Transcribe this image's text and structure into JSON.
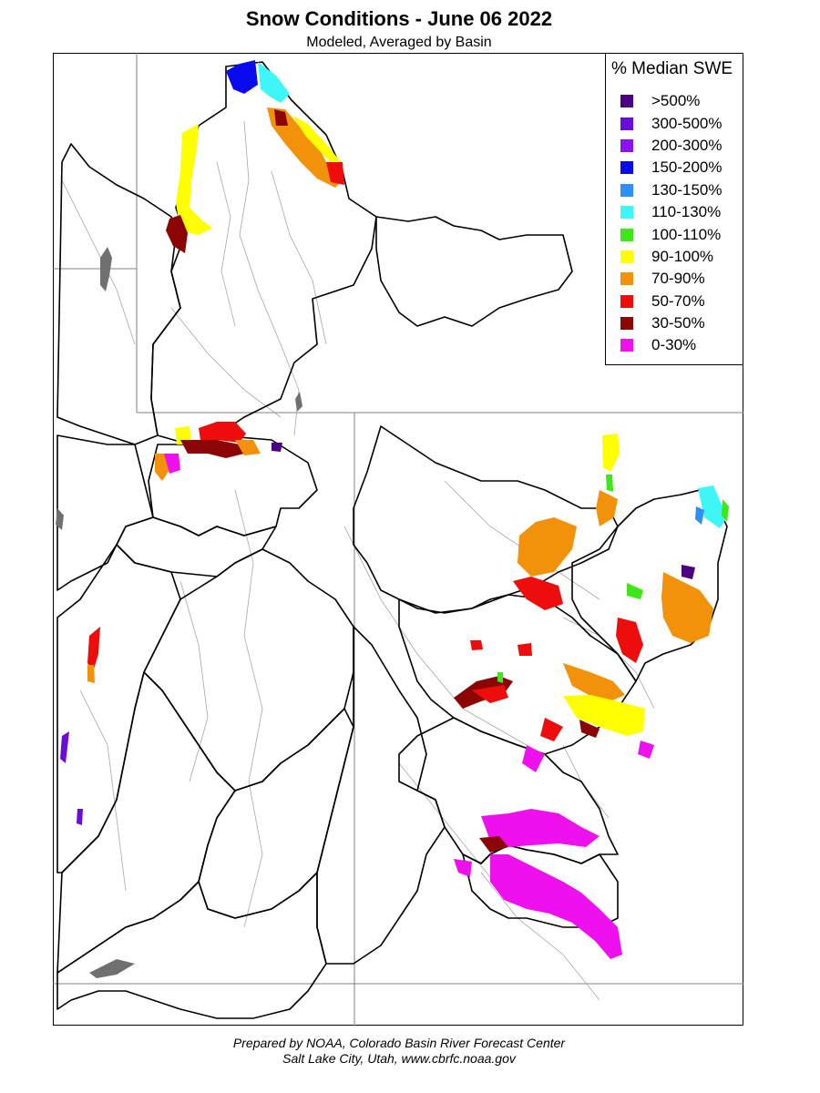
{
  "header": {
    "title": "Snow Conditions - June 06 2022",
    "subtitle": "Modeled, Averaged by Basin"
  },
  "legend": {
    "title": "% Median SWE",
    "items": [
      {
        "label": ">500%",
        "color": "#4b0082"
      },
      {
        "label": "300-500%",
        "color": "#6a0dd8"
      },
      {
        "label": "200-300%",
        "color": "#8a12f5"
      },
      {
        "label": "150-200%",
        "color": "#0a0aef"
      },
      {
        "label": "130-150%",
        "color": "#2f8ff5"
      },
      {
        "label": "110-130%",
        "color": "#3ff6f6"
      },
      {
        "label": "100-110%",
        "color": "#3fe61a"
      },
      {
        "label": "90-100%",
        "color": "#ffff00"
      },
      {
        "label": "70-90%",
        "color": "#f2920b"
      },
      {
        "label": "50-70%",
        "color": "#ee0d0d"
      },
      {
        "label": "30-50%",
        "color": "#8c0505"
      },
      {
        "label": "0-30%",
        "color": "#ee11ee"
      }
    ]
  },
  "footer": {
    "line1": "Prepared by NOAA, Colorado Basin River Forecast Center",
    "line2": "Salt Lake City, Utah, www.cbrfc.noaa.gov"
  },
  "map": {
    "colors": {
      "basin_border": "#000000",
      "state_border": "#808080",
      "river": "#a6a6a6",
      "lake": "#707070"
    }
  }
}
